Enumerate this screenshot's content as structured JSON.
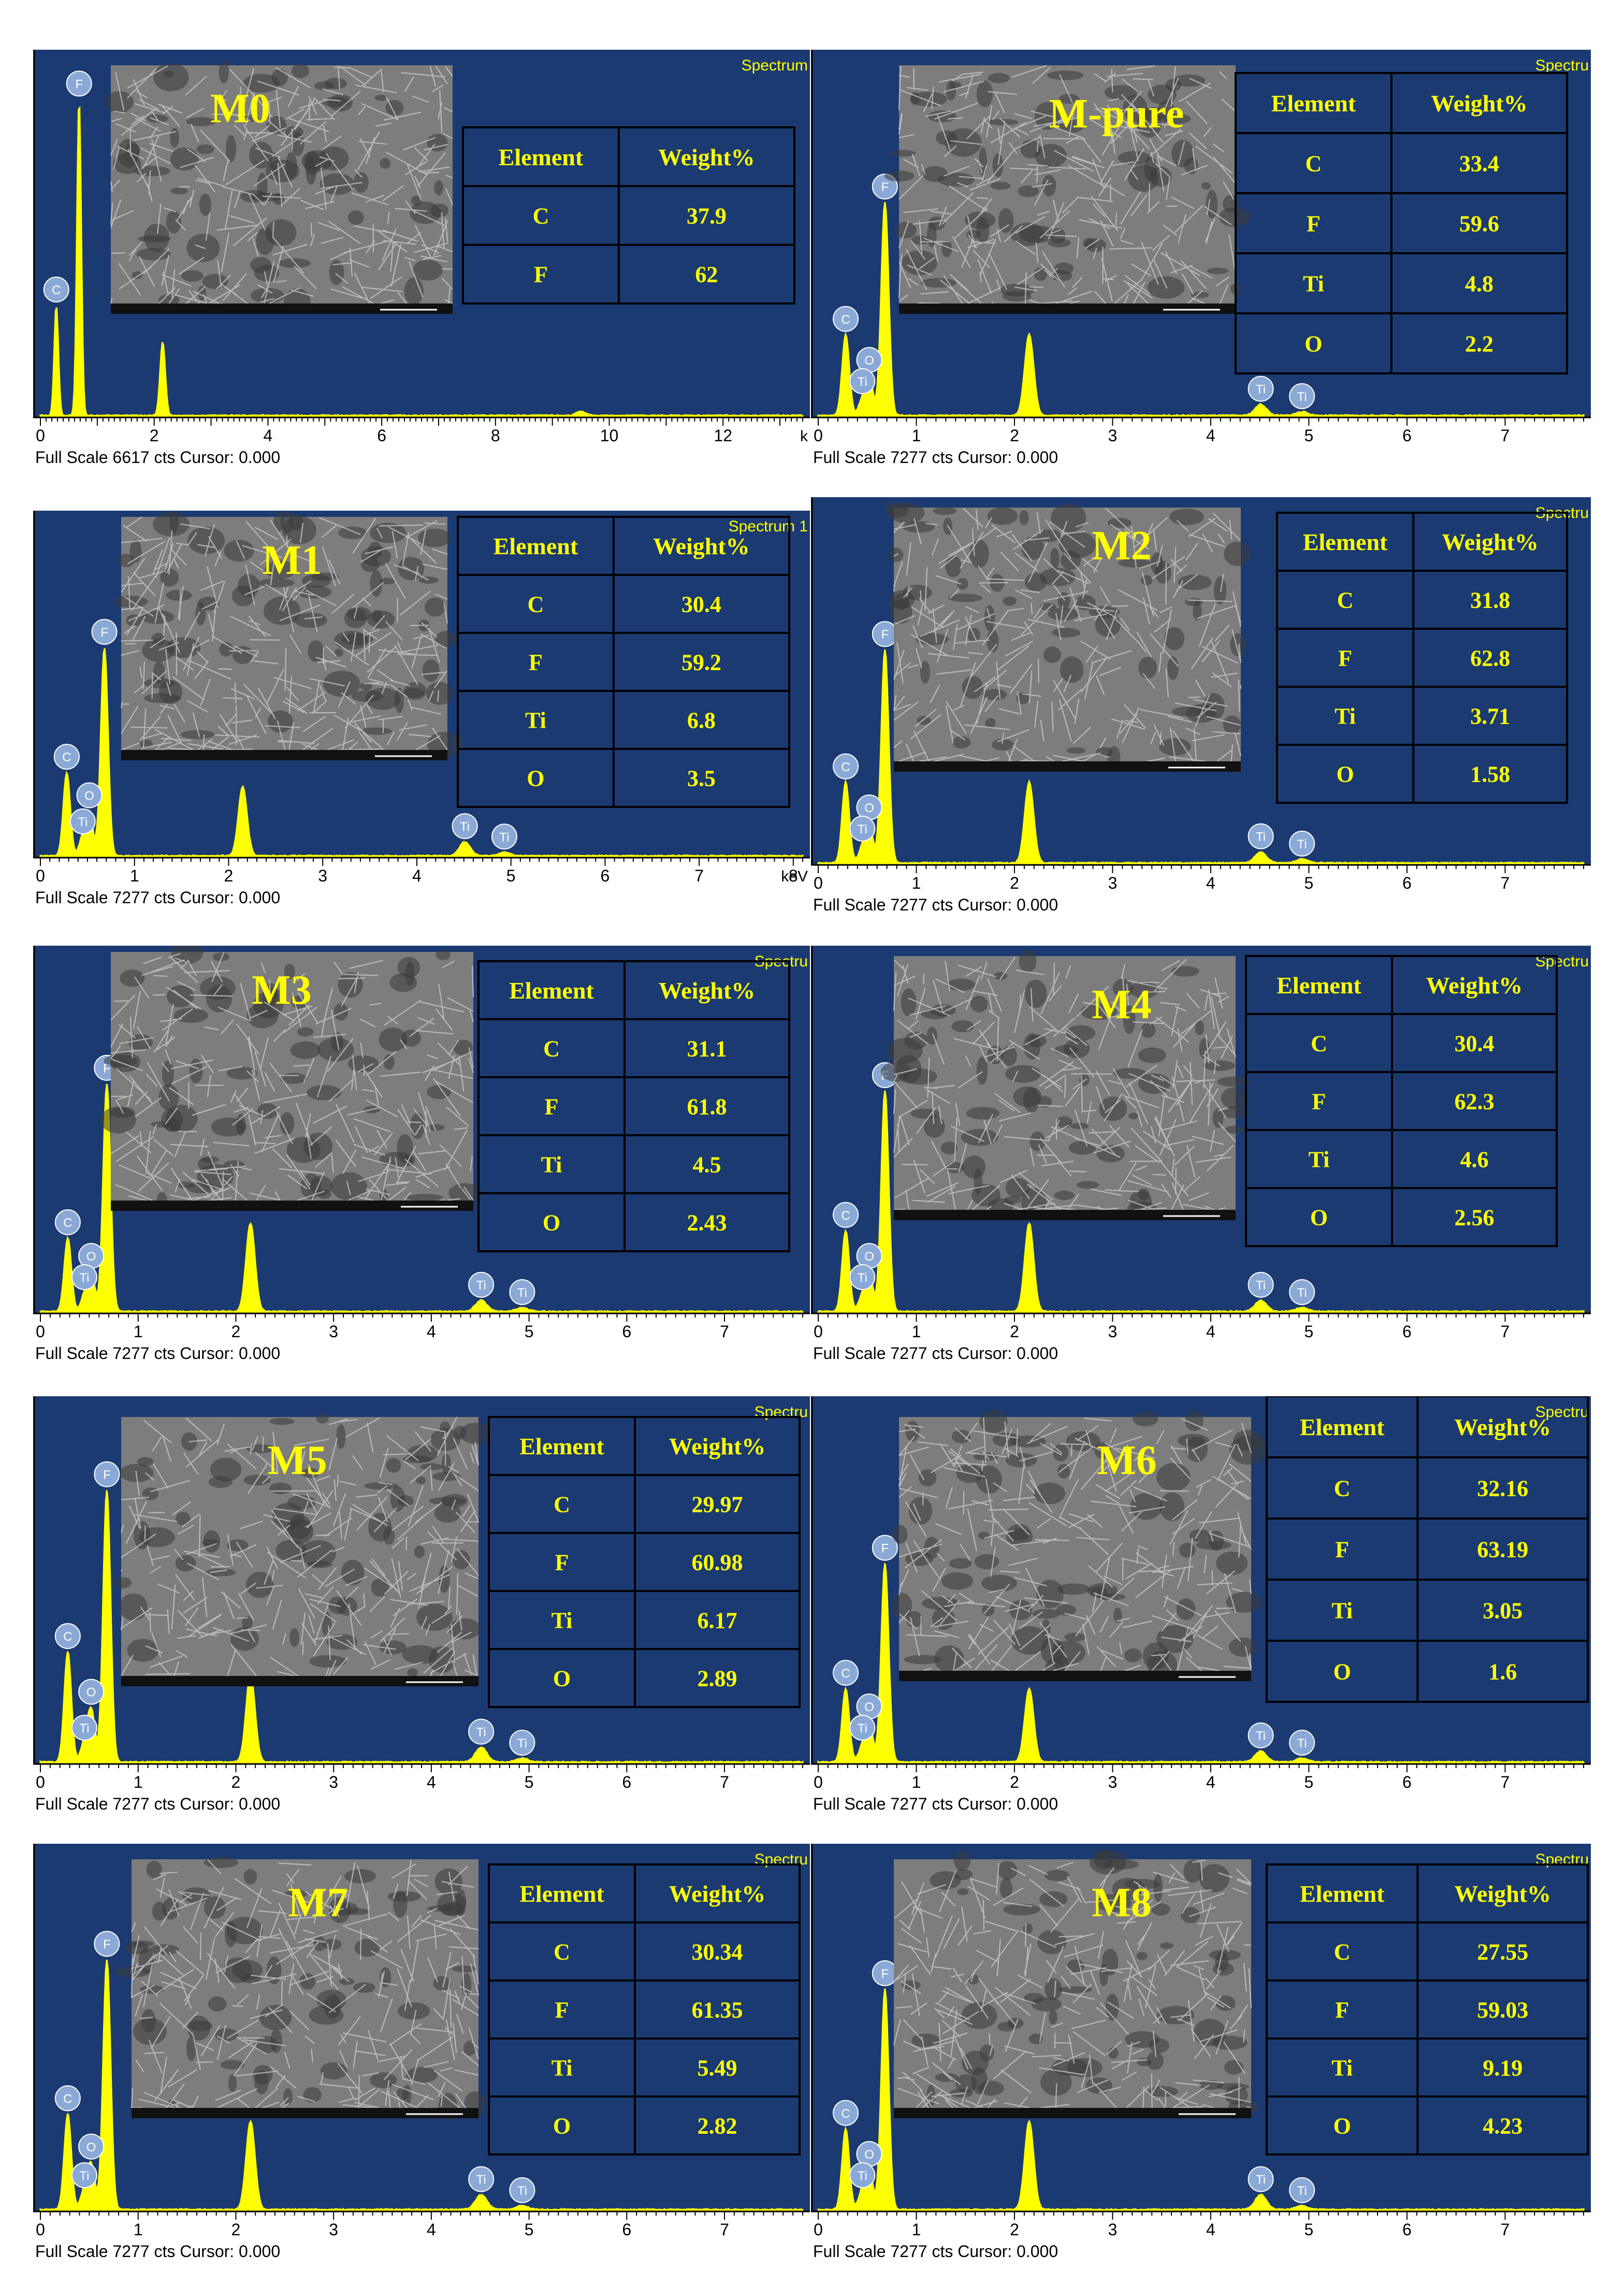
{
  "colors": {
    "plot_bg": "#1b3a72",
    "spectrum": "#ffff00",
    "label_text": "#ffff00",
    "peak_marker": "#8aa9d6",
    "marker_text": "#ffffff",
    "table_border": "#000000",
    "sem_gray": "#7d7d7d",
    "baseline_white": "#ffffff"
  },
  "table_headers": [
    "Element",
    "Weight%"
  ],
  "chart_data": [
    {
      "type": "spectrum",
      "sample": "M0",
      "spectrum_label": "Spectrum",
      "footer": "Full Scale 6617 cts Cursor: 0.000",
      "xunit": "k",
      "xlim": [
        0,
        13.4
      ],
      "xticks": [
        "0",
        "2",
        "4",
        "6",
        "8",
        "10",
        "12"
      ],
      "peaks": [
        {
          "element": "C",
          "x": 0.28,
          "height": 0.3
        },
        {
          "element": "F",
          "x": 0.68,
          "height": 0.86
        },
        {
          "x": 2.15,
          "height": 0.2
        },
        {
          "x": 9.5,
          "height": 0.01
        }
      ],
      "table": [
        [
          "C",
          "37.9"
        ],
        [
          "F",
          "62"
        ]
      ]
    },
    {
      "type": "spectrum",
      "sample": "M-pure",
      "spectrum_label": "Spectru",
      "footer": "Full Scale 7277 cts Cursor: 0.000",
      "xunit": "",
      "xlim": [
        0,
        7.8
      ],
      "xticks": [
        "0",
        "1",
        "2",
        "3",
        "4",
        "5",
        "6",
        "7"
      ],
      "peaks": [
        {
          "element": "C",
          "x": 0.28,
          "height": 0.22
        },
        {
          "element": "O",
          "x": 0.52,
          "height": 0.1
        },
        {
          "element": "Ti",
          "x": 0.45,
          "height": 0.04
        },
        {
          "element": "F",
          "x": 0.68,
          "height": 0.58
        },
        {
          "x": 2.15,
          "height": 0.22
        },
        {
          "element": "Ti",
          "x": 4.51,
          "height": 0.03
        },
        {
          "element": "Ti",
          "x": 4.93,
          "height": 0.01
        }
      ],
      "table": [
        [
          "C",
          "33.4"
        ],
        [
          "F",
          "59.6"
        ],
        [
          "Ti",
          "4.8"
        ],
        [
          "O",
          "2.2"
        ]
      ]
    },
    {
      "type": "spectrum",
      "sample": "M1",
      "spectrum_label": "Spectrum 1",
      "footer": "Full Scale 7277 cts Cursor: 0.000",
      "xunit": "keV",
      "xlim": [
        0,
        8.1
      ],
      "xticks": [
        "0",
        "1",
        "2",
        "3",
        "4",
        "5",
        "6",
        "7",
        "8"
      ],
      "peaks": [
        {
          "element": "C",
          "x": 0.28,
          "height": 0.24
        },
        {
          "element": "O",
          "x": 0.52,
          "height": 0.12
        },
        {
          "element": "Ti",
          "x": 0.45,
          "height": 0.05
        },
        {
          "element": "F",
          "x": 0.68,
          "height": 0.6
        },
        {
          "x": 2.15,
          "height": 0.2
        },
        {
          "element": "Ti",
          "x": 4.51,
          "height": 0.04
        },
        {
          "element": "Ti",
          "x": 4.93,
          "height": 0.01
        }
      ],
      "table": [
        [
          "C",
          "30.4"
        ],
        [
          "F",
          "59.2"
        ],
        [
          "Ti",
          "6.8"
        ],
        [
          "O",
          "3.5"
        ]
      ]
    },
    {
      "type": "spectrum",
      "sample": "M2",
      "spectrum_label": "Spectru",
      "footer": "Full Scale 7277 cts Cursor: 0.000",
      "xunit": "",
      "xlim": [
        0,
        7.8
      ],
      "xticks": [
        "0",
        "1",
        "2",
        "3",
        "4",
        "5",
        "6",
        "7"
      ],
      "peaks": [
        {
          "element": "C",
          "x": 0.28,
          "height": 0.22
        },
        {
          "element": "O",
          "x": 0.52,
          "height": 0.1
        },
        {
          "element": "Ti",
          "x": 0.45,
          "height": 0.04
        },
        {
          "element": "F",
          "x": 0.68,
          "height": 0.58
        },
        {
          "x": 2.15,
          "height": 0.22
        },
        {
          "element": "Ti",
          "x": 4.51,
          "height": 0.03
        },
        {
          "element": "Ti",
          "x": 4.93,
          "height": 0.01
        }
      ],
      "table": [
        [
          "C",
          "31.8"
        ],
        [
          "F",
          "62.8"
        ],
        [
          "Ti",
          "3.71"
        ],
        [
          "O",
          "1.58"
        ]
      ]
    },
    {
      "type": "spectrum",
      "sample": "M3",
      "spectrum_label": "Spectru",
      "footer": "Full Scale 7277 cts Cursor: 0.000",
      "xunit": "",
      "xlim": [
        0,
        7.8
      ],
      "xticks": [
        "0",
        "1",
        "2",
        "3",
        "4",
        "5",
        "6",
        "7"
      ],
      "peaks": [
        {
          "element": "C",
          "x": 0.28,
          "height": 0.2
        },
        {
          "element": "O",
          "x": 0.52,
          "height": 0.1
        },
        {
          "element": "Ti",
          "x": 0.45,
          "height": 0.04
        },
        {
          "element": "F",
          "x": 0.68,
          "height": 0.62
        },
        {
          "x": 2.15,
          "height": 0.24
        },
        {
          "element": "Ti",
          "x": 4.51,
          "height": 0.03
        },
        {
          "element": "Ti",
          "x": 4.93,
          "height": 0.01
        }
      ],
      "table": [
        [
          "C",
          "31.1"
        ],
        [
          "F",
          "61.8"
        ],
        [
          "Ti",
          "4.5"
        ],
        [
          "O",
          "2.43"
        ]
      ]
    },
    {
      "type": "spectrum",
      "sample": "M4",
      "spectrum_label": "Spectru",
      "footer": "Full Scale 7277 cts Cursor: 0.000",
      "xunit": "",
      "xlim": [
        0,
        7.8
      ],
      "xticks": [
        "0",
        "1",
        "2",
        "3",
        "4",
        "5",
        "6",
        "7"
      ],
      "peaks": [
        {
          "element": "C",
          "x": 0.28,
          "height": 0.22
        },
        {
          "element": "O",
          "x": 0.52,
          "height": 0.1
        },
        {
          "element": "Ti",
          "x": 0.45,
          "height": 0.04
        },
        {
          "element": "F",
          "x": 0.68,
          "height": 0.6
        },
        {
          "x": 2.15,
          "height": 0.24
        },
        {
          "element": "Ti",
          "x": 4.51,
          "height": 0.03
        },
        {
          "element": "Ti",
          "x": 4.93,
          "height": 0.01
        }
      ],
      "table": [
        [
          "C",
          "30.4"
        ],
        [
          "F",
          "62.3"
        ],
        [
          "Ti",
          "4.6"
        ],
        [
          "O",
          "2.56"
        ]
      ]
    },
    {
      "type": "spectrum",
      "sample": "M5",
      "spectrum_label": "Spectru",
      "footer": "Full Scale 7277 cts Cursor: 0.000",
      "xunit": "",
      "xlim": [
        0,
        7.8
      ],
      "xticks": [
        "0",
        "1",
        "2",
        "3",
        "4",
        "5",
        "6",
        "7"
      ],
      "peaks": [
        {
          "element": "C",
          "x": 0.28,
          "height": 0.3
        },
        {
          "element": "O",
          "x": 0.52,
          "height": 0.14
        },
        {
          "element": "Ti",
          "x": 0.45,
          "height": 0.05
        },
        {
          "element": "F",
          "x": 0.68,
          "height": 0.74
        },
        {
          "x": 2.15,
          "height": 0.24
        },
        {
          "element": "Ti",
          "x": 4.51,
          "height": 0.04
        },
        {
          "element": "Ti",
          "x": 4.93,
          "height": 0.01
        }
      ],
      "table": [
        [
          "C",
          "29.97"
        ],
        [
          "F",
          "60.98"
        ],
        [
          "Ti",
          "6.17"
        ],
        [
          "O",
          "2.89"
        ]
      ]
    },
    {
      "type": "spectrum",
      "sample": "M6",
      "spectrum_label": "Spectru",
      "footer": "Full Scale 7277 cts Cursor: 0.000",
      "xunit": "",
      "xlim": [
        0,
        7.8
      ],
      "xticks": [
        "0",
        "1",
        "2",
        "3",
        "4",
        "5",
        "6",
        "7"
      ],
      "peaks": [
        {
          "element": "C",
          "x": 0.28,
          "height": 0.2
        },
        {
          "element": "O",
          "x": 0.52,
          "height": 0.1
        },
        {
          "element": "Ti",
          "x": 0.45,
          "height": 0.04
        },
        {
          "element": "F",
          "x": 0.68,
          "height": 0.54
        },
        {
          "x": 2.15,
          "height": 0.2
        },
        {
          "element": "Ti",
          "x": 4.51,
          "height": 0.03
        },
        {
          "element": "Ti",
          "x": 4.93,
          "height": 0.01
        }
      ],
      "table": [
        [
          "C",
          "32.16"
        ],
        [
          "F",
          "63.19"
        ],
        [
          "Ti",
          "3.05"
        ],
        [
          "O",
          "1.6"
        ]
      ]
    },
    {
      "type": "spectrum",
      "sample": "M7",
      "spectrum_label": "Spectru",
      "footer": "Full Scale 7277 cts Cursor: 0.000",
      "xunit": "",
      "xlim": [
        0,
        7.8
      ],
      "xticks": [
        "0",
        "1",
        "2",
        "3",
        "4",
        "5",
        "6",
        "7"
      ],
      "peaks": [
        {
          "element": "C",
          "x": 0.28,
          "height": 0.26
        },
        {
          "element": "O",
          "x": 0.52,
          "height": 0.12
        },
        {
          "element": "Ti",
          "x": 0.45,
          "height": 0.05
        },
        {
          "element": "F",
          "x": 0.68,
          "height": 0.68
        },
        {
          "x": 2.15,
          "height": 0.24
        },
        {
          "element": "Ti",
          "x": 4.51,
          "height": 0.04
        },
        {
          "element": "Ti",
          "x": 4.93,
          "height": 0.01
        }
      ],
      "table": [
        [
          "C",
          "30.34"
        ],
        [
          "F",
          "61.35"
        ],
        [
          "Ti",
          "5.49"
        ],
        [
          "O",
          "2.82"
        ]
      ]
    },
    {
      "type": "spectrum",
      "sample": "M8",
      "spectrum_label": "Spectru",
      "footer": "Full Scale 7277 cts Cursor: 0.000",
      "xunit": "",
      "xlim": [
        0,
        7.8
      ],
      "xticks": [
        "0",
        "1",
        "2",
        "3",
        "4",
        "5",
        "6",
        "7"
      ],
      "peaks": [
        {
          "element": "C",
          "x": 0.28,
          "height": 0.22
        },
        {
          "element": "O",
          "x": 0.52,
          "height": 0.1
        },
        {
          "element": "Ti",
          "x": 0.45,
          "height": 0.05
        },
        {
          "element": "F",
          "x": 0.68,
          "height": 0.6
        },
        {
          "x": 2.15,
          "height": 0.24
        },
        {
          "element": "Ti",
          "x": 4.51,
          "height": 0.04
        },
        {
          "element": "Ti",
          "x": 4.93,
          "height": 0.01
        }
      ],
      "table": [
        [
          "C",
          "27.55"
        ],
        [
          "F",
          "59.03"
        ],
        [
          "Ti",
          "9.19"
        ],
        [
          "O",
          "4.23"
        ]
      ]
    }
  ]
}
